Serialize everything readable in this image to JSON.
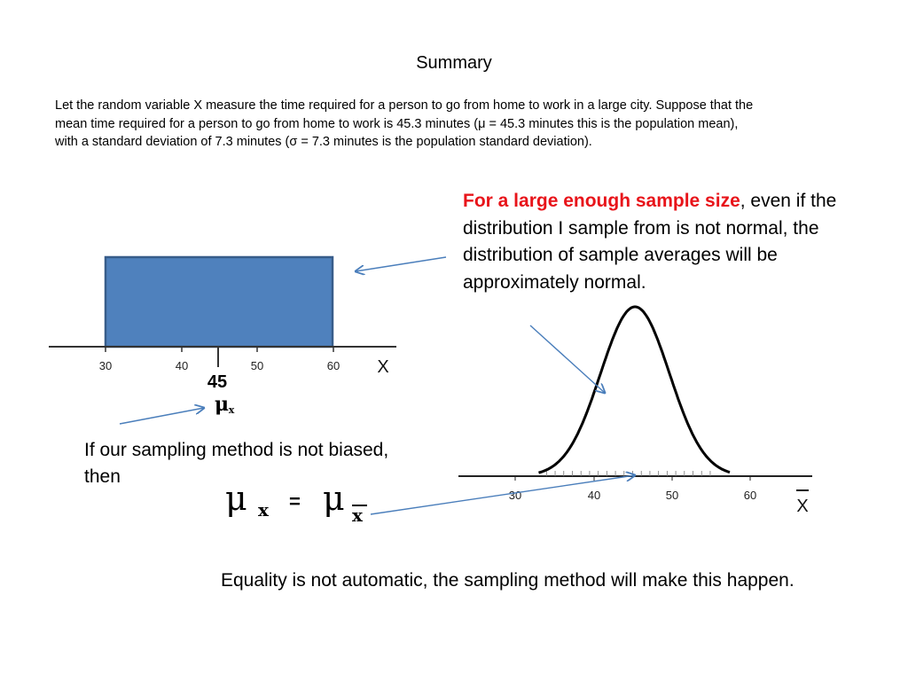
{
  "slide": {
    "title": "Summary",
    "intro": "Let the random variable X measure the time required for a person to go from home to work in a large city. Suppose that the mean time required for a person to go from home to work is 45.3 minutes (μ = 45.3 minutes this is the population mean), with a standard deviation  of 7.3 minutes (σ = 7.3 minutes is the population standard deviation).",
    "clt_highlight": "For a large enough sample size",
    "clt_rest": ", even if the distribution I sample from is not normal, the distribution of sample averages will be approximately normal.",
    "unbiased": "If our sampling method is not biased, then",
    "equality_note": "Equality is not automatic, the sampling method will make this happen."
  },
  "colors": {
    "accent_red": "#e8141a",
    "box_fill": "#4f81bd",
    "box_stroke": "#385d8a",
    "arrow": "#4a7ebb"
  },
  "uniform_plot": {
    "ticks": [
      "30",
      "40",
      "50",
      "60"
    ],
    "axis_label": "X",
    "mean_label": "45",
    "mu": "μ",
    "mu_sub": "x"
  },
  "normal_plot": {
    "ticks": [
      "30",
      "40",
      "50",
      "60"
    ],
    "axis_label": "X",
    "mean": 45.3
  },
  "equation": {
    "mu_left": "μ",
    "sub_left": "x",
    "equals": "=",
    "mu_right": "μ",
    "sub_right": "x"
  }
}
